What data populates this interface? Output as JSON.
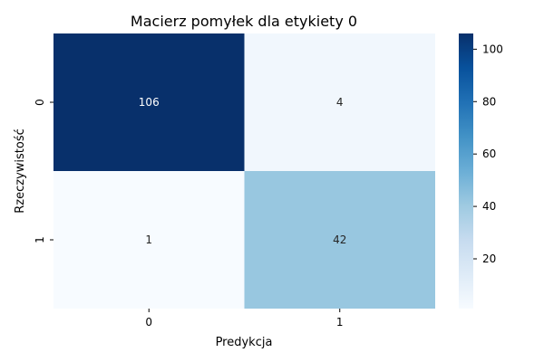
{
  "chart_data": {
    "type": "heatmap",
    "title": "Macierz pomyłek dla etykiety 0",
    "xlabel": "Predykcja",
    "ylabel": "Rzeczywistość",
    "x_categories": [
      "0",
      "1"
    ],
    "y_categories": [
      "0",
      "1"
    ],
    "values": [
      [
        106,
        4
      ],
      [
        1,
        42
      ]
    ],
    "colormap": "Blues",
    "colorbar": {
      "min": 1,
      "max": 106,
      "ticks": [
        20,
        40,
        60,
        80,
        100
      ]
    }
  }
}
